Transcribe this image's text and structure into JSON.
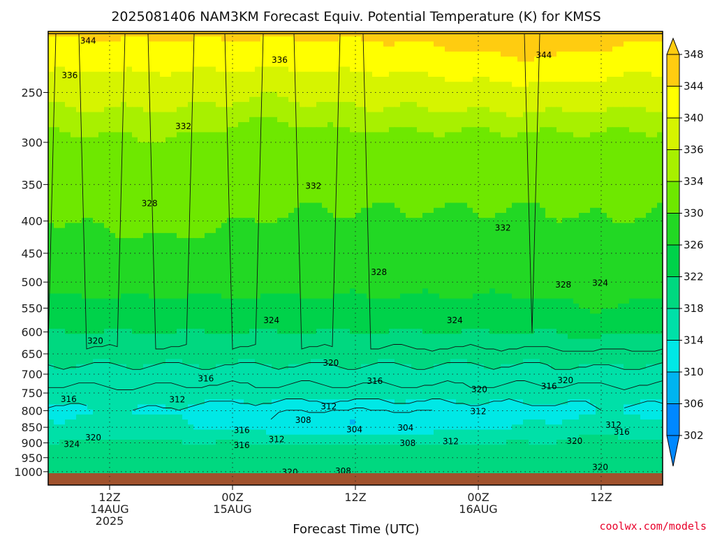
{
  "chart_data": {
    "type": "heatmap",
    "title": "2025081406 NAM3KM Forecast Equiv. Potential Temperature (K) for KMSS",
    "xlabel": "Forecast Time (UTC)",
    "ylabel": "",
    "y_scale": "log",
    "y_reversed": true,
    "ylim": [
      1050,
      200
    ],
    "y_ticks": [
      "250",
      "300",
      "350",
      "400",
      "450",
      "500",
      "550",
      "600",
      "650",
      "700",
      "750",
      "800",
      "850",
      "900",
      "950",
      "1000"
    ],
    "xlim_hours": [
      6,
      66
    ],
    "x_ticks": [
      {
        "hour": 12,
        "lines": [
          "12Z",
          "14AUG",
          "2025"
        ]
      },
      {
        "hour": 24,
        "lines": [
          "00Z",
          "15AUG"
        ]
      },
      {
        "hour": 36,
        "lines": [
          "12Z"
        ]
      },
      {
        "hour": 48,
        "lines": [
          "00Z",
          "16AUG"
        ]
      },
      {
        "hour": 60,
        "lines": [
          "12Z"
        ]
      }
    ],
    "colorbar": {
      "levels": [
        302,
        306,
        310,
        314,
        318,
        322,
        326,
        330,
        334,
        336,
        340,
        344,
        348
      ],
      "colors": [
        "#0088ff",
        "#00b4f0",
        "#00e8e6",
        "#00e0a8",
        "#00d880",
        "#00d24a",
        "#22d824",
        "#6ee800",
        "#a8f000",
        "#d6f400",
        "#ffff00",
        "#ffcc10"
      ]
    },
    "contour_labels": [
      {
        "text": "344",
        "hour": 9.9,
        "p": 207
      },
      {
        "text": "336",
        "hour": 8.1,
        "p": 235
      },
      {
        "text": "336",
        "hour": 28.6,
        "p": 222
      },
      {
        "text": "344",
        "hour": 54.4,
        "p": 218
      },
      {
        "text": "332",
        "hour": 19.2,
        "p": 283
      },
      {
        "text": "332",
        "hour": 31.9,
        "p": 352
      },
      {
        "text": "332",
        "hour": 50.4,
        "p": 410
      },
      {
        "text": "328",
        "hour": 15.9,
        "p": 375
      },
      {
        "text": "328",
        "hour": 38.3,
        "p": 482
      },
      {
        "text": "328",
        "hour": 56.3,
        "p": 505
      },
      {
        "text": "324",
        "hour": 59.9,
        "p": 502
      },
      {
        "text": "324",
        "hour": 27.8,
        "p": 575
      },
      {
        "text": "324",
        "hour": 45.7,
        "p": 575
      },
      {
        "text": "320",
        "hour": 10.6,
        "p": 620
      },
      {
        "text": "320",
        "hour": 33.6,
        "p": 672
      },
      {
        "text": "320",
        "hour": 48.1,
        "p": 740
      },
      {
        "text": "320",
        "hour": 56.5,
        "p": 716
      },
      {
        "text": "320",
        "hour": 57.4,
        "p": 894
      },
      {
        "text": "320",
        "hour": 10.4,
        "p": 883
      },
      {
        "text": "320",
        "hour": 59.9,
        "p": 984
      },
      {
        "text": "320",
        "hour": 29.6,
        "p": 1002
      },
      {
        "text": "316",
        "hour": 21.4,
        "p": 712
      },
      {
        "text": "316",
        "hour": 37.9,
        "p": 718
      },
      {
        "text": "316",
        "hour": 54.9,
        "p": 732
      },
      {
        "text": "316",
        "hour": 8.0,
        "p": 767
      },
      {
        "text": "316",
        "hour": 62.0,
        "p": 865
      },
      {
        "text": "316",
        "hour": 24.9,
        "p": 859
      },
      {
        "text": "316",
        "hour": 24.9,
        "p": 908
      },
      {
        "text": "312",
        "hour": 18.6,
        "p": 768
      },
      {
        "text": "312",
        "hour": 33.4,
        "p": 788
      },
      {
        "text": "312",
        "hour": 48.0,
        "p": 802
      },
      {
        "text": "312",
        "hour": 61.2,
        "p": 843
      },
      {
        "text": "312",
        "hour": 28.3,
        "p": 888
      },
      {
        "text": "312",
        "hour": 45.3,
        "p": 895
      },
      {
        "text": "308",
        "hour": 30.9,
        "p": 828
      },
      {
        "text": "308",
        "hour": 41.1,
        "p": 901
      },
      {
        "text": "308",
        "hour": 34.8,
        "p": 998
      },
      {
        "text": "304",
        "hour": 35.9,
        "p": 857
      },
      {
        "text": "304",
        "hour": 40.9,
        "p": 852
      },
      {
        "text": "324",
        "hour": 8.3,
        "p": 905
      }
    ]
  },
  "credit": {
    "text": "coolwx.com/models",
    "color": "#e8002a"
  },
  "ground": {
    "color": "#a0522d"
  },
  "frame": {
    "background": "#ffffff"
  }
}
